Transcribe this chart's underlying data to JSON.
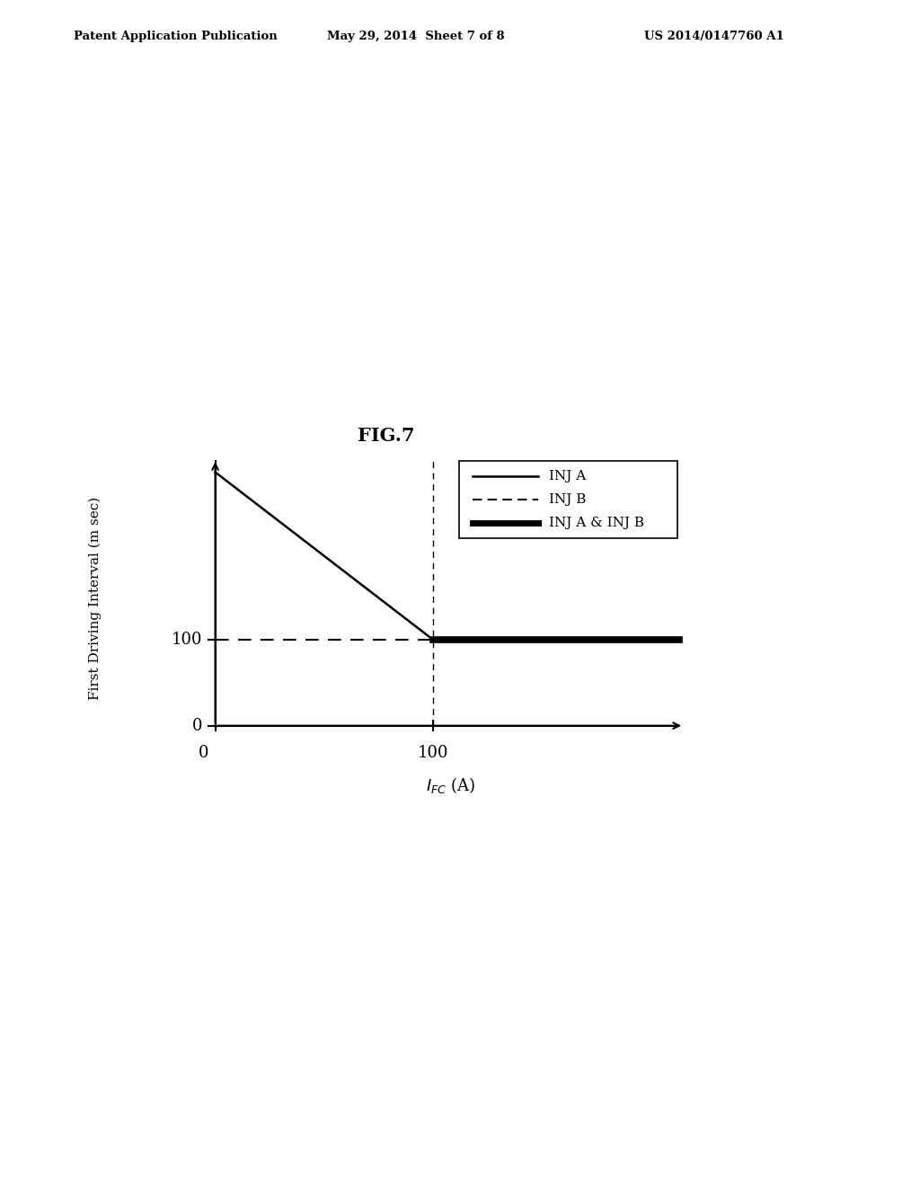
{
  "fig_title": "FIG.7",
  "header_left": "Patent Application Publication",
  "header_center": "May 29, 2014  Sheet 7 of 8",
  "header_right": "US 2014/0147760 A1",
  "ylabel": "First Driving Interval (m sec)",
  "xlabel_math": "$I_{FC}$",
  "xlabel_unit": "(A)",
  "bg_color": "#ffffff",
  "line_color": "#000000",
  "legend_entries": [
    "INJ A",
    "INJ B",
    "INJ A & INJ B"
  ],
  "fig_width": 10.24,
  "fig_height": 13.2,
  "fig_dpi": 100
}
